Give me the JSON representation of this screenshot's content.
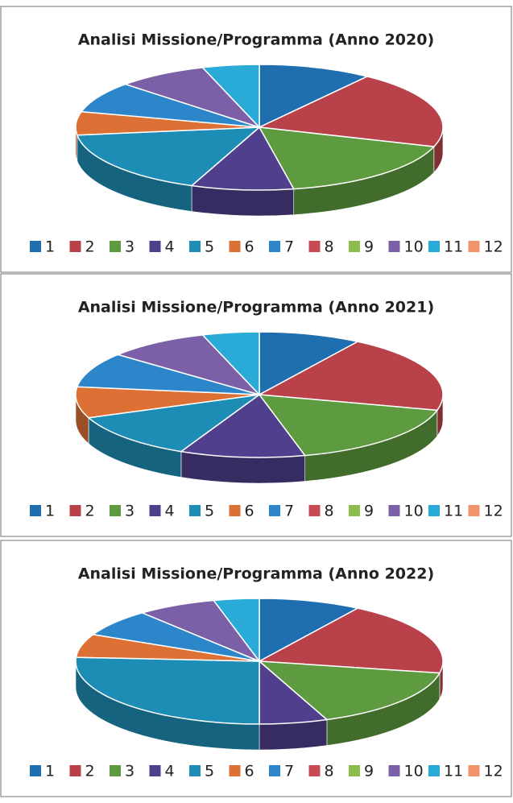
{
  "chart_data": [
    {
      "type": "pie3d",
      "title": "Analisi Missione/Programma (Anno 2020)",
      "categories": [
        "1",
        "2",
        "3",
        "4",
        "5",
        "6",
        "7",
        "8",
        "9",
        "10",
        "11",
        "12"
      ],
      "values": [
        10,
        20,
        17,
        9,
        17,
        6,
        8,
        0,
        0,
        8,
        5,
        0
      ],
      "colors": [
        "#1f6fb0",
        "#b8414a",
        "#5e9a3f",
        "#4f3f8c",
        "#1e8db5",
        "#dc7035",
        "#2c86c9",
        "#c94a55",
        "#8cbd4a",
        "#7b60a8",
        "#2aaad6",
        "#f0956a"
      ]
    },
    {
      "type": "pie3d",
      "title": "Analisi Missione/Programma (Anno 2021)",
      "categories": [
        "1",
        "2",
        "3",
        "4",
        "5",
        "6",
        "7",
        "8",
        "9",
        "10",
        "11",
        "12"
      ],
      "values": [
        9,
        20,
        17,
        11,
        12,
        8,
        9,
        0,
        0,
        9,
        5,
        0
      ],
      "colors": [
        "#1f6fb0",
        "#b8414a",
        "#5e9a3f",
        "#4f3f8c",
        "#1e8db5",
        "#dc7035",
        "#2c86c9",
        "#c94a55",
        "#8cbd4a",
        "#7b60a8",
        "#2aaad6",
        "#f0956a"
      ]
    },
    {
      "type": "pie3d",
      "title": "Analisi Missione/Programma (Anno 2022)",
      "categories": [
        "1",
        "2",
        "3",
        "4",
        "5",
        "6",
        "7",
        "8",
        "9",
        "10",
        "11",
        "12"
      ],
      "values": [
        9,
        19,
        16,
        6,
        26,
        6,
        7,
        0,
        0,
        7,
        4,
        0
      ],
      "colors": [
        "#1f6fb0",
        "#b8414a",
        "#5e9a3f",
        "#4f3f8c",
        "#1e8db5",
        "#dc7035",
        "#2c86c9",
        "#c94a55",
        "#8cbd4a",
        "#7b60a8",
        "#2aaad6",
        "#f0956a"
      ]
    }
  ]
}
